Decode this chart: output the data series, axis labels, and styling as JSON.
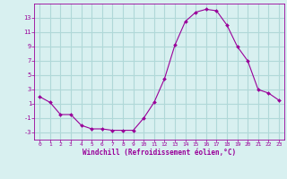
{
  "x": [
    0,
    1,
    2,
    3,
    4,
    5,
    6,
    7,
    8,
    9,
    10,
    11,
    12,
    13,
    14,
    15,
    16,
    17,
    18,
    19,
    20,
    21,
    22,
    23
  ],
  "y": [
    2.0,
    1.2,
    -0.5,
    -0.5,
    -2.0,
    -2.5,
    -2.5,
    -2.7,
    -2.7,
    -2.7,
    -1.0,
    1.2,
    4.5,
    9.2,
    12.5,
    13.8,
    14.2,
    14.0,
    12.0,
    9.0,
    7.0,
    3.0,
    2.5,
    1.5
  ],
  "line_color": "#990099",
  "marker": "D",
  "marker_size": 2.0,
  "bg_color": "#d8f0f0",
  "grid_color": "#b0d8d8",
  "xlabel": "Windchill (Refroidissement éolien,°C)",
  "xlabel_color": "#990099",
  "tick_color": "#990099",
  "ylim": [
    -4,
    15
  ],
  "xlim": [
    -0.5,
    23.5
  ],
  "yticks": [
    -3,
    -1,
    1,
    3,
    5,
    7,
    9,
    11,
    13
  ],
  "xticks": [
    0,
    1,
    2,
    3,
    4,
    5,
    6,
    7,
    8,
    9,
    10,
    11,
    12,
    13,
    14,
    15,
    16,
    17,
    18,
    19,
    20,
    21,
    22,
    23
  ]
}
